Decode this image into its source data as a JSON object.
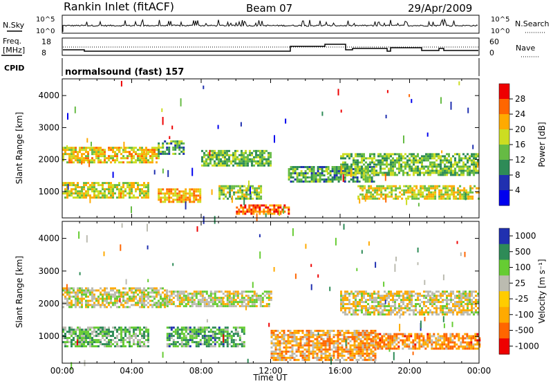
{
  "header": {
    "station": "Rankin Inlet (fitACF)",
    "beam": "Beam 07",
    "date": "29/Apr/2009"
  },
  "aux_labels": {
    "nsky": "N.Sky",
    "nsky_ticks": [
      "10^5",
      "10^0"
    ],
    "nsearch": "N.Search",
    "nsearch_ticks": [
      "10^5",
      "10^0"
    ],
    "freq": "Freq.",
    "freq_unit": "[MHz]",
    "freq_ticks": [
      "18",
      "8"
    ],
    "nave": "Nave",
    "nave_ticks": [
      "60",
      "0"
    ],
    "cpid": "CPID",
    "cpid_value": "normalsound (fast) 157"
  },
  "x_axis": {
    "label": "Time UT",
    "ticks": [
      "00:00",
      "04:00",
      "08:00",
      "12:00",
      "16:00",
      "20:00",
      "00:00"
    ]
  },
  "power_panel": {
    "ylabel": "Slant Range [km]",
    "yticks": [
      "1000",
      "2000",
      "3000",
      "4000"
    ],
    "colorbar_label": "Power [dB]",
    "colorbar_ticks": [
      "4",
      "8",
      "12",
      "16",
      "20",
      "24",
      "28"
    ]
  },
  "velocity_panel": {
    "ylabel": "Slant Range [km]",
    "yticks": [
      "1000",
      "2000",
      "3000",
      "4000"
    ],
    "colorbar_label": "Velocity [m s⁻¹]",
    "colorbar_ticks": [
      "1000",
      "500",
      "100",
      "25",
      "-25",
      "-100",
      "-500",
      "-1000"
    ]
  },
  "chart_data": [
    {
      "type": "heatmap",
      "name": "power",
      "x_unit": "hours UT",
      "xlim": [
        0,
        24
      ],
      "ylim": [
        200,
        4500
      ],
      "zlim": [
        0,
        32
      ],
      "colorscale": [
        "#0000ee",
        "#2030b0",
        "#2e8b57",
        "#66bb44",
        "#ccdd22",
        "#ffaa00",
        "#ff6600",
        "#ee0000"
      ],
      "echo_regions": [
        {
          "x": [
            0.0,
            5.5
          ],
          "y": [
            1900,
            2400
          ],
          "value": 20
        },
        {
          "x": [
            5.5,
            7.0
          ],
          "y": [
            2200,
            2600
          ],
          "value": 12
        },
        {
          "x": [
            0.0,
            5.0
          ],
          "y": [
            800,
            1300
          ],
          "value": 18
        },
        {
          "x": [
            5.5,
            8.0
          ],
          "y": [
            700,
            1100
          ],
          "value": 22
        },
        {
          "x": [
            8.0,
            12.0
          ],
          "y": [
            1800,
            2300
          ],
          "value": 14
        },
        {
          "x": [
            9.0,
            11.5
          ],
          "y": [
            800,
            1200
          ],
          "value": 16
        },
        {
          "x": [
            10.0,
            13.0
          ],
          "y": [
            300,
            600
          ],
          "value": 26
        },
        {
          "x": [
            13.0,
            18.0
          ],
          "y": [
            1300,
            1800
          ],
          "value": 12
        },
        {
          "x": [
            16.0,
            24.0
          ],
          "y": [
            1500,
            2200
          ],
          "value": 14
        },
        {
          "x": [
            17.0,
            24.0
          ],
          "y": [
            800,
            1200
          ],
          "value": 18
        }
      ]
    },
    {
      "type": "heatmap",
      "name": "velocity",
      "x_unit": "hours UT",
      "xlim": [
        0,
        24
      ],
      "ylim": [
        200,
        4500
      ],
      "zlim": [
        -1000,
        1000
      ],
      "colorscale": [
        "#ee0000",
        "#ff6600",
        "#ffaa00",
        "#bbbbb0",
        "#66cc33",
        "#2e8b57",
        "#2030b0"
      ],
      "echo_regions": [
        {
          "x": [
            0.0,
            6.0
          ],
          "y": [
            1900,
            2500
          ],
          "value": 0
        },
        {
          "x": [
            6.0,
            12.0
          ],
          "y": [
            1900,
            2400
          ],
          "value": 0
        },
        {
          "x": [
            0.0,
            5.0
          ],
          "y": [
            700,
            1300
          ],
          "value": 300
        },
        {
          "x": [
            6.0,
            10.5
          ],
          "y": [
            700,
            1300
          ],
          "value": 400
        },
        {
          "x": [
            12.0,
            18.0
          ],
          "y": [
            300,
            1200
          ],
          "value": -300
        },
        {
          "x": [
            16.0,
            24.0
          ],
          "y": [
            1700,
            2400
          ],
          "value": -80
        },
        {
          "x": [
            18.0,
            24.0
          ],
          "y": [
            600,
            1100
          ],
          "value": -400
        }
      ]
    }
  ]
}
